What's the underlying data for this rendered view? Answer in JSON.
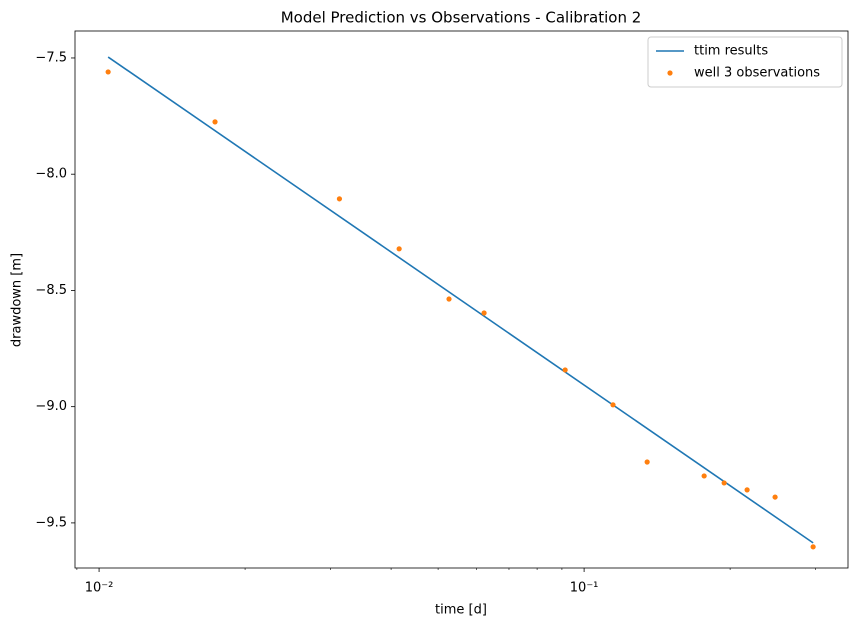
{
  "chart_data": {
    "type": "line",
    "title": "Model Prediction vs Observations - Calibration 2",
    "xlabel": "time [d]",
    "ylabel": "drawdown [m]",
    "xscale": "log",
    "xlim": [
      0.00892,
      0.35
    ],
    "ylim": [
      -9.694,
      -7.384
    ],
    "xticks": [
      {
        "value": 0.01,
        "label": "10⁻²"
      },
      {
        "value": 0.1,
        "label": "10⁻¹"
      }
    ],
    "yticks": [
      {
        "value": -7.5,
        "label": "−7.5"
      },
      {
        "value": -8.0,
        "label": "−8.0"
      },
      {
        "value": -8.5,
        "label": "−8.5"
      },
      {
        "value": -9.0,
        "label": "−9.0"
      },
      {
        "value": -9.5,
        "label": "−9.5"
      }
    ],
    "legend": "upper right",
    "series": [
      {
        "name": "ttim results",
        "color": "#1f77b4",
        "style": "line",
        "x": [
          0.01044,
          0.2966
        ],
        "values": [
          -7.496,
          -9.586
        ]
      },
      {
        "name": "well 3 observations",
        "color": "#ff7f0e",
        "style": "points",
        "x": [
          0.01044,
          0.01734,
          0.0313,
          0.04156,
          0.05266,
          0.0622,
          0.0914,
          0.1147,
          0.1349,
          0.1768,
          0.1944,
          0.2168,
          0.2476,
          0.2966
        ],
        "values": [
          -7.56,
          -7.775,
          -8.106,
          -8.321,
          -8.537,
          -8.597,
          -8.842,
          -8.992,
          -9.238,
          -9.298,
          -9.328,
          -9.358,
          -9.389,
          -9.603
        ]
      }
    ]
  }
}
